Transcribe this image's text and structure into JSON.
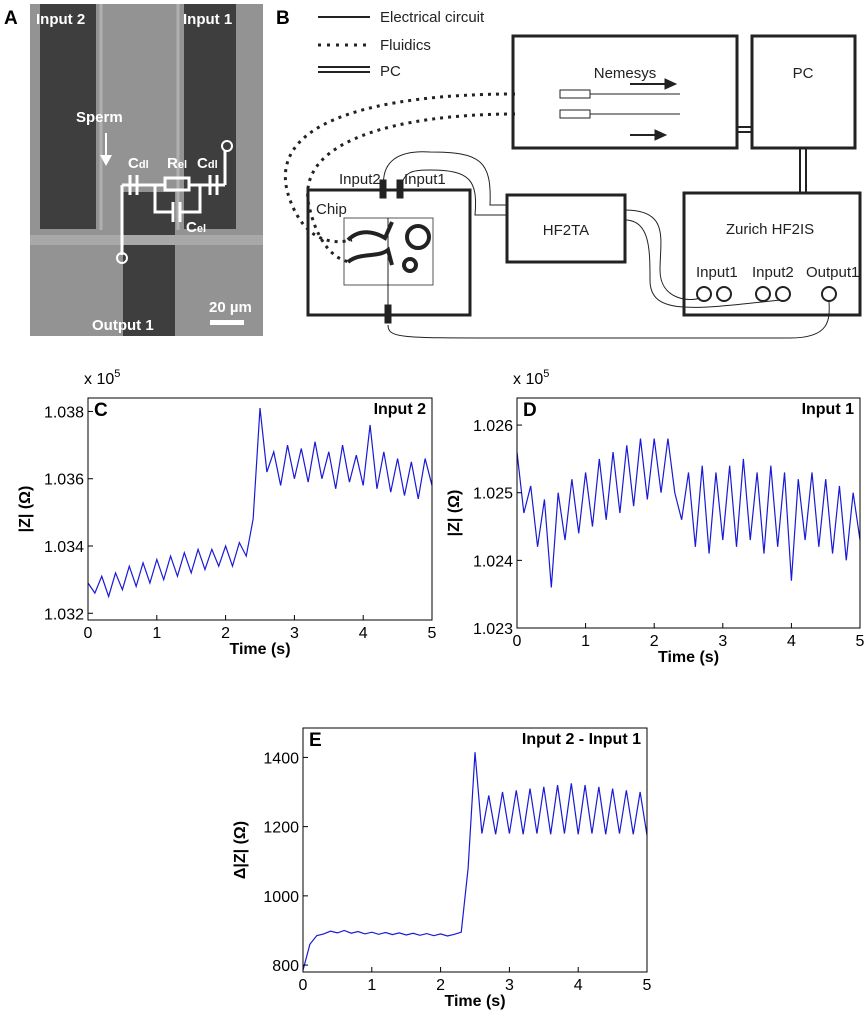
{
  "panel_a": {
    "letter": "A",
    "input2": "Input 2",
    "input1": "Input 1",
    "sperm": "Sperm",
    "cdl_left": {
      "main": "C",
      "sub": "dl"
    },
    "rel": {
      "main": "R",
      "sub": "el"
    },
    "cdl_right": {
      "main": "C",
      "sub": "dl"
    },
    "cel": {
      "main": "C",
      "sub": "el"
    },
    "output1": "Output 1",
    "scale_bar": "20 µm"
  },
  "panel_b": {
    "letter": "B",
    "legend": [
      "Electrical circuit",
      "Fluidics",
      "PC"
    ],
    "nemesys": "Nemesys",
    "pc": "PC",
    "chip": "Chip",
    "chip_input2": "Input2",
    "chip_input1": "Input1",
    "hf2ta": "HF2TA",
    "zurich": "Zurich HF2IS",
    "zurich_ports": [
      "Input1",
      "Input2",
      "Output1"
    ]
  },
  "chart_data": [
    {
      "type": "line",
      "panel": "C",
      "title": "Input 2",
      "x_label": "Time (s)",
      "y_label": "|Z| (Ω)",
      "y_multiplier": {
        "base": "x 10",
        "exponent": "5"
      },
      "xlim": [
        0,
        5
      ],
      "xticks": [
        0,
        1,
        2,
        3,
        4,
        5
      ],
      "ylim": [
        1.0318,
        1.0384
      ],
      "yticks": [
        1.032,
        1.034,
        1.036,
        1.038
      ],
      "series": [
        {
          "color": "#1a1ad6",
          "x": [
            0,
            0.1,
            0.2,
            0.3,
            0.4,
            0.5,
            0.6,
            0.7,
            0.8,
            0.9,
            1,
            1.1,
            1.2,
            1.3,
            1.4,
            1.5,
            1.6,
            1.7,
            1.8,
            1.9,
            2,
            2.1,
            2.2,
            2.3,
            2.4,
            2.5,
            2.6,
            2.7,
            2.8,
            2.9,
            3,
            3.1,
            3.2,
            3.3,
            3.4,
            3.5,
            3.6,
            3.7,
            3.8,
            3.9,
            4,
            4.1,
            4.2,
            4.3,
            4.4,
            4.5,
            4.6,
            4.7,
            4.8,
            4.9,
            5
          ],
          "values": [
            1.0329,
            1.0326,
            1.0331,
            1.0325,
            1.0332,
            1.0327,
            1.0334,
            1.0328,
            1.0335,
            1.0329,
            1.0336,
            1.033,
            1.0337,
            1.0331,
            1.0338,
            1.0332,
            1.0339,
            1.0333,
            1.0339,
            1.0334,
            1.034,
            1.0334,
            1.0341,
            1.0337,
            1.0348,
            1.0381,
            1.0362,
            1.0368,
            1.0358,
            1.037,
            1.036,
            1.0369,
            1.0359,
            1.0371,
            1.036,
            1.0368,
            1.0357,
            1.037,
            1.0359,
            1.0367,
            1.0358,
            1.0376,
            1.0357,
            1.0368,
            1.0356,
            1.0366,
            1.0355,
            1.0365,
            1.0354,
            1.0366,
            1.0358
          ]
        }
      ]
    },
    {
      "type": "line",
      "panel": "D",
      "title": "Input 1",
      "x_label": "Time (s)",
      "y_label": "|Z| (Ω)",
      "y_multiplier": {
        "base": "x 10",
        "exponent": "5"
      },
      "xlim": [
        0,
        5
      ],
      "xticks": [
        0,
        1,
        2,
        3,
        4,
        5
      ],
      "ylim": [
        1.023,
        1.0264
      ],
      "yticks": [
        1.023,
        1.024,
        1.025,
        1.026
      ],
      "series": [
        {
          "color": "#1a1ad6",
          "x": [
            0,
            0.1,
            0.2,
            0.3,
            0.4,
            0.5,
            0.6,
            0.7,
            0.8,
            0.9,
            1,
            1.1,
            1.2,
            1.3,
            1.4,
            1.5,
            1.6,
            1.7,
            1.8,
            1.9,
            2,
            2.1,
            2.2,
            2.3,
            2.4,
            2.5,
            2.6,
            2.7,
            2.8,
            2.9,
            3,
            3.1,
            3.2,
            3.3,
            3.4,
            3.5,
            3.6,
            3.7,
            3.8,
            3.9,
            4,
            4.1,
            4.2,
            4.3,
            4.4,
            4.5,
            4.6,
            4.7,
            4.8,
            4.9,
            5
          ],
          "values": [
            1.0256,
            1.0247,
            1.0251,
            1.0242,
            1.0249,
            1.0236,
            1.025,
            1.0243,
            1.0252,
            1.0244,
            1.0253,
            1.0245,
            1.0255,
            1.0246,
            1.0256,
            1.0247,
            1.0257,
            1.0248,
            1.0258,
            1.0249,
            1.0258,
            1.025,
            1.0258,
            1.025,
            1.0246,
            1.0253,
            1.0242,
            1.0254,
            1.0241,
            1.0253,
            1.0243,
            1.0254,
            1.0242,
            1.0255,
            1.0243,
            1.0253,
            1.0241,
            1.0254,
            1.0242,
            1.0253,
            1.0237,
            1.0252,
            1.0243,
            1.0253,
            1.0242,
            1.0252,
            1.0241,
            1.0251,
            1.024,
            1.025,
            1.0243
          ]
        }
      ]
    },
    {
      "type": "line",
      "panel": "E",
      "title": "Input 2 - Input 1",
      "x_label": "Time (s)",
      "y_label": "Δ|Z| (Ω)",
      "xlim": [
        0,
        5
      ],
      "xticks": [
        0,
        1,
        2,
        3,
        4,
        5
      ],
      "ylim": [
        780,
        1485
      ],
      "yticks": [
        800,
        1000,
        1200,
        1400
      ],
      "series": [
        {
          "color": "#1a1ad6",
          "x": [
            0,
            0.1,
            0.2,
            0.3,
            0.4,
            0.5,
            0.6,
            0.7,
            0.8,
            0.9,
            1,
            1.1,
            1.2,
            1.3,
            1.4,
            1.5,
            1.6,
            1.7,
            1.8,
            1.9,
            2,
            2.1,
            2.2,
            2.3,
            2.4,
            2.5,
            2.6,
            2.7,
            2.8,
            2.9,
            3,
            3.1,
            3.2,
            3.3,
            3.4,
            3.5,
            3.6,
            3.7,
            3.8,
            3.9,
            4,
            4.1,
            4.2,
            4.3,
            4.4,
            4.5,
            4.6,
            4.7,
            4.8,
            4.9,
            5
          ],
          "values": [
            785,
            860,
            885,
            890,
            898,
            893,
            900,
            892,
            897,
            890,
            895,
            889,
            894,
            888,
            893,
            887,
            892,
            886,
            891,
            885,
            890,
            884,
            889,
            895,
            1080,
            1415,
            1180,
            1290,
            1178,
            1300,
            1180,
            1305,
            1178,
            1310,
            1180,
            1315,
            1178,
            1320,
            1180,
            1325,
            1178,
            1320,
            1180,
            1315,
            1178,
            1310,
            1180,
            1305,
            1178,
            1300,
            1175
          ]
        }
      ]
    }
  ]
}
